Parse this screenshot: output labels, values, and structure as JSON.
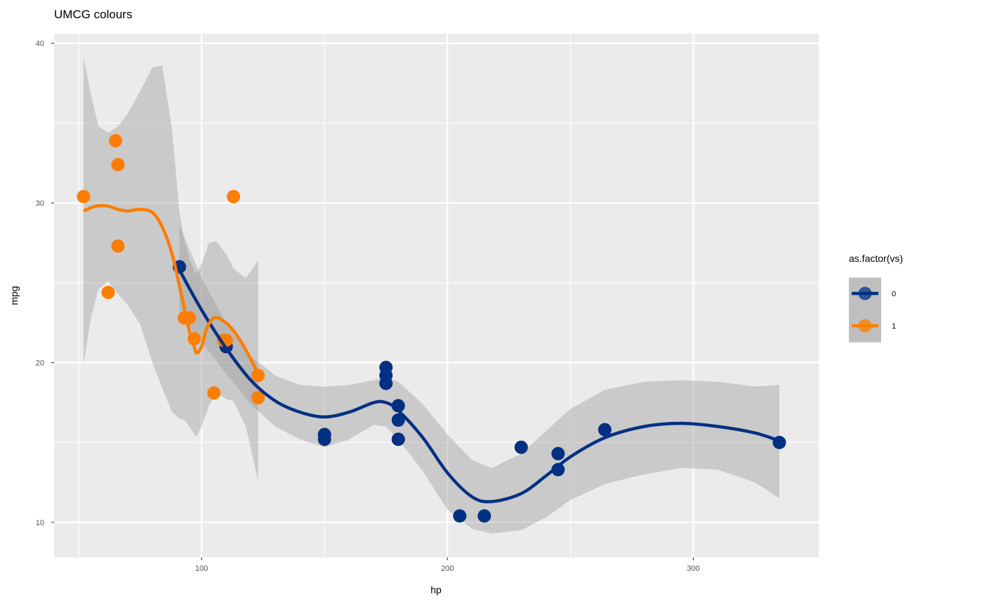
{
  "chart_data": {
    "type": "scatter",
    "title": "UMCG colours",
    "xlabel": "hp",
    "ylabel": "mpg",
    "xlim": [
      40,
      351
    ],
    "ylim": [
      7.8,
      40.6
    ],
    "x_ticks": [
      100,
      200,
      300
    ],
    "x_minor_ticks": [
      50,
      150,
      250
    ],
    "y_ticks": [
      10,
      20,
      30,
      40
    ],
    "y_minor_ticks": [
      15,
      25,
      35
    ],
    "grid": true,
    "legend": {
      "title": "as.factor(vs)",
      "position": "right",
      "entries": [
        "0",
        "1"
      ]
    },
    "series": [
      {
        "name": "0",
        "color": "#003082",
        "points": [
          [
            110,
            21.0
          ],
          [
            110,
            21.0
          ],
          [
            175,
            18.7
          ],
          [
            245,
            14.3
          ],
          [
            180,
            16.4
          ],
          [
            180,
            17.3
          ],
          [
            180,
            15.2
          ],
          [
            205,
            10.4
          ],
          [
            215,
            10.4
          ],
          [
            230,
            14.7
          ],
          [
            150,
            15.5
          ],
          [
            150,
            15.2
          ],
          [
            245,
            13.3
          ],
          [
            175,
            19.2
          ],
          [
            91,
            26.0
          ],
          [
            264,
            15.8
          ],
          [
            175,
            19.7
          ],
          [
            335,
            15.0
          ]
        ],
        "smooth": [
          [
            91,
            25.8
          ],
          [
            100,
            23.3
          ],
          [
            110,
            20.9
          ],
          [
            120,
            18.9
          ],
          [
            130,
            17.6
          ],
          [
            140,
            16.9
          ],
          [
            150,
            16.6
          ],
          [
            160,
            16.9
          ],
          [
            170,
            17.5
          ],
          [
            175,
            17.5
          ],
          [
            180,
            17.0
          ],
          [
            190,
            15.3
          ],
          [
            200,
            13.1
          ],
          [
            210,
            11.6
          ],
          [
            218,
            11.3
          ],
          [
            230,
            11.8
          ],
          [
            240,
            12.9
          ],
          [
            250,
            14.1
          ],
          [
            264,
            15.3
          ],
          [
            280,
            16.0
          ],
          [
            295,
            16.2
          ],
          [
            310,
            16.0
          ],
          [
            325,
            15.6
          ],
          [
            335,
            15.1
          ]
        ],
        "ribbon_upper": [
          [
            91,
            28.6
          ],
          [
            100,
            25.3
          ],
          [
            110,
            22.5
          ],
          [
            120,
            20.4
          ],
          [
            130,
            19.2
          ],
          [
            140,
            18.6
          ],
          [
            150,
            18.5
          ],
          [
            160,
            18.6
          ],
          [
            170,
            18.9
          ],
          [
            175,
            19.1
          ],
          [
            180,
            18.8
          ],
          [
            190,
            17.4
          ],
          [
            200,
            15.5
          ],
          [
            210,
            13.9
          ],
          [
            218,
            13.4
          ],
          [
            230,
            14.3
          ],
          [
            240,
            15.7
          ],
          [
            250,
            17.1
          ],
          [
            264,
            18.3
          ],
          [
            280,
            18.8
          ],
          [
            295,
            18.9
          ],
          [
            310,
            18.8
          ],
          [
            325,
            18.5
          ],
          [
            335,
            18.6
          ]
        ],
        "ribbon_lower": [
          [
            91,
            23.0
          ],
          [
            100,
            21.3
          ],
          [
            110,
            19.3
          ],
          [
            120,
            17.4
          ],
          [
            130,
            16.0
          ],
          [
            140,
            15.2
          ],
          [
            150,
            14.7
          ],
          [
            160,
            15.2
          ],
          [
            170,
            16.1
          ],
          [
            175,
            16.0
          ],
          [
            180,
            15.2
          ],
          [
            190,
            13.2
          ],
          [
            200,
            10.8
          ],
          [
            210,
            9.6
          ],
          [
            218,
            9.3
          ],
          [
            230,
            9.5
          ],
          [
            240,
            10.3
          ],
          [
            250,
            11.4
          ],
          [
            264,
            12.4
          ],
          [
            280,
            13.0
          ],
          [
            295,
            13.4
          ],
          [
            310,
            13.3
          ],
          [
            325,
            12.5
          ],
          [
            335,
            11.5
          ]
        ]
      },
      {
        "name": "1",
        "color": "#ff7d00",
        "points": [
          [
            93,
            22.8
          ],
          [
            110,
            21.4
          ],
          [
            105,
            18.1
          ],
          [
            62,
            24.4
          ],
          [
            95,
            22.8
          ],
          [
            123,
            19.2
          ],
          [
            123,
            17.8
          ],
          [
            66,
            32.4
          ],
          [
            52,
            30.4
          ],
          [
            65,
            33.9
          ],
          [
            97,
            21.5
          ],
          [
            66,
            27.3
          ],
          [
            113,
            30.4
          ],
          [
            109,
            21.4
          ]
        ],
        "smooth": [
          [
            52,
            29.5
          ],
          [
            57,
            29.8
          ],
          [
            62,
            29.8
          ],
          [
            66,
            29.6
          ],
          [
            70,
            29.5
          ],
          [
            75,
            29.6
          ],
          [
            80,
            29.4
          ],
          [
            84,
            28.5
          ],
          [
            88,
            26.8
          ],
          [
            91,
            24.8
          ],
          [
            93,
            23.4
          ],
          [
            95,
            22.0
          ],
          [
            97,
            21.0
          ],
          [
            98,
            20.6
          ],
          [
            100,
            21.0
          ],
          [
            102,
            22.1
          ],
          [
            105,
            22.8
          ],
          [
            109,
            22.6
          ],
          [
            113,
            22.0
          ],
          [
            118,
            20.8
          ],
          [
            123,
            19.3
          ]
        ],
        "ribbon_upper": [
          [
            52,
            39.1
          ],
          [
            55,
            36.8
          ],
          [
            58,
            34.8
          ],
          [
            62,
            34.4
          ],
          [
            66,
            34.8
          ],
          [
            70,
            35.6
          ],
          [
            75,
            37.0
          ],
          [
            80,
            38.5
          ],
          [
            84,
            38.6
          ],
          [
            88,
            34.6
          ],
          [
            91,
            29.4
          ],
          [
            93,
            27.6
          ],
          [
            95,
            26.5
          ],
          [
            97,
            25.7
          ],
          [
            98,
            25.6
          ],
          [
            100,
            26.2
          ],
          [
            103,
            27.5
          ],
          [
            106,
            27.6
          ],
          [
            110,
            26.8
          ],
          [
            113,
            25.9
          ],
          [
            118,
            25.3
          ],
          [
            123,
            26.4
          ]
        ],
        "ribbon_lower": [
          [
            52,
            19.9
          ],
          [
            55,
            22.8
          ],
          [
            58,
            24.6
          ],
          [
            62,
            25.1
          ],
          [
            66,
            24.3
          ],
          [
            70,
            23.6
          ],
          [
            75,
            22.4
          ],
          [
            80,
            20.0
          ],
          [
            84,
            18.4
          ],
          [
            88,
            16.9
          ],
          [
            91,
            16.5
          ],
          [
            93,
            16.4
          ],
          [
            95,
            16.0
          ],
          [
            97,
            15.5
          ],
          [
            98,
            15.4
          ],
          [
            100,
            16.0
          ],
          [
            103,
            17.3
          ],
          [
            106,
            18.1
          ],
          [
            110,
            17.7
          ],
          [
            113,
            17.6
          ],
          [
            118,
            16.0
          ],
          [
            123,
            12.6
          ]
        ]
      }
    ]
  }
}
